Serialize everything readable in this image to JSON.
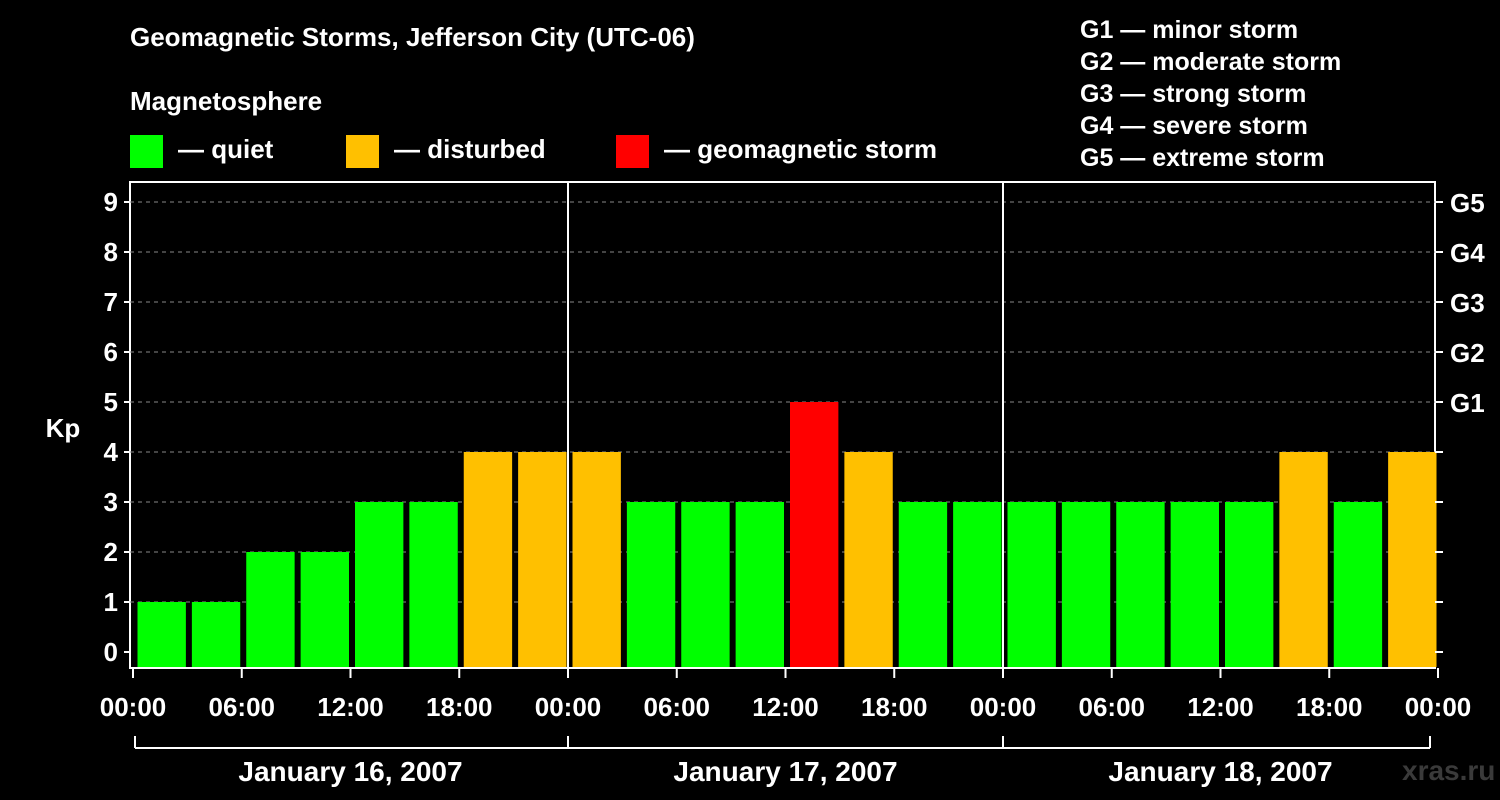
{
  "header": {
    "title": "Geomagnetic Storms, Jefferson City (UTC-06)",
    "subtitle": "Magnetosphere"
  },
  "legend": [
    {
      "label": "— quiet",
      "color": "#00ff00"
    },
    {
      "label": "— disturbed",
      "color": "#ffc000"
    },
    {
      "label": "— geomagnetic storm",
      "color": "#ff0000"
    }
  ],
  "storm_levels": [
    "G1 — minor storm",
    "G2 — moderate storm",
    "G3 — strong storm",
    "G4 — severe storm",
    "G5 — extreme storm"
  ],
  "watermark": "xras.ru",
  "chart_data": {
    "type": "bar",
    "title": "Geomagnetic Storms, Jefferson City (UTC-06)",
    "ylabel": "Kp",
    "ylim": [
      0,
      9
    ],
    "yticks": [
      0,
      1,
      2,
      3,
      4,
      5,
      6,
      7,
      8,
      9
    ],
    "right_axis": [
      {
        "kp": 5,
        "label": "G1"
      },
      {
        "kp": 6,
        "label": "G2"
      },
      {
        "kp": 7,
        "label": "G3"
      },
      {
        "kp": 8,
        "label": "G4"
      },
      {
        "kp": 9,
        "label": "G5"
      }
    ],
    "x_tick_labels": [
      "00:00",
      "06:00",
      "12:00",
      "18:00",
      "00:00",
      "06:00",
      "12:00",
      "18:00",
      "00:00",
      "06:00",
      "12:00",
      "18:00",
      "00:00"
    ],
    "days": [
      "January 16, 2007",
      "January 17, 2007",
      "January 18, 2007"
    ],
    "interval_hours": 3,
    "values": [
      1,
      1,
      2,
      2,
      3,
      3,
      4,
      4,
      4,
      3,
      3,
      3,
      5,
      4,
      3,
      3,
      3,
      3,
      3,
      3,
      3,
      4,
      3,
      4
    ],
    "colors": {
      "quiet": "#00ff00",
      "disturbed": "#ffc000",
      "storm": "#ff0000"
    },
    "grid": true
  }
}
